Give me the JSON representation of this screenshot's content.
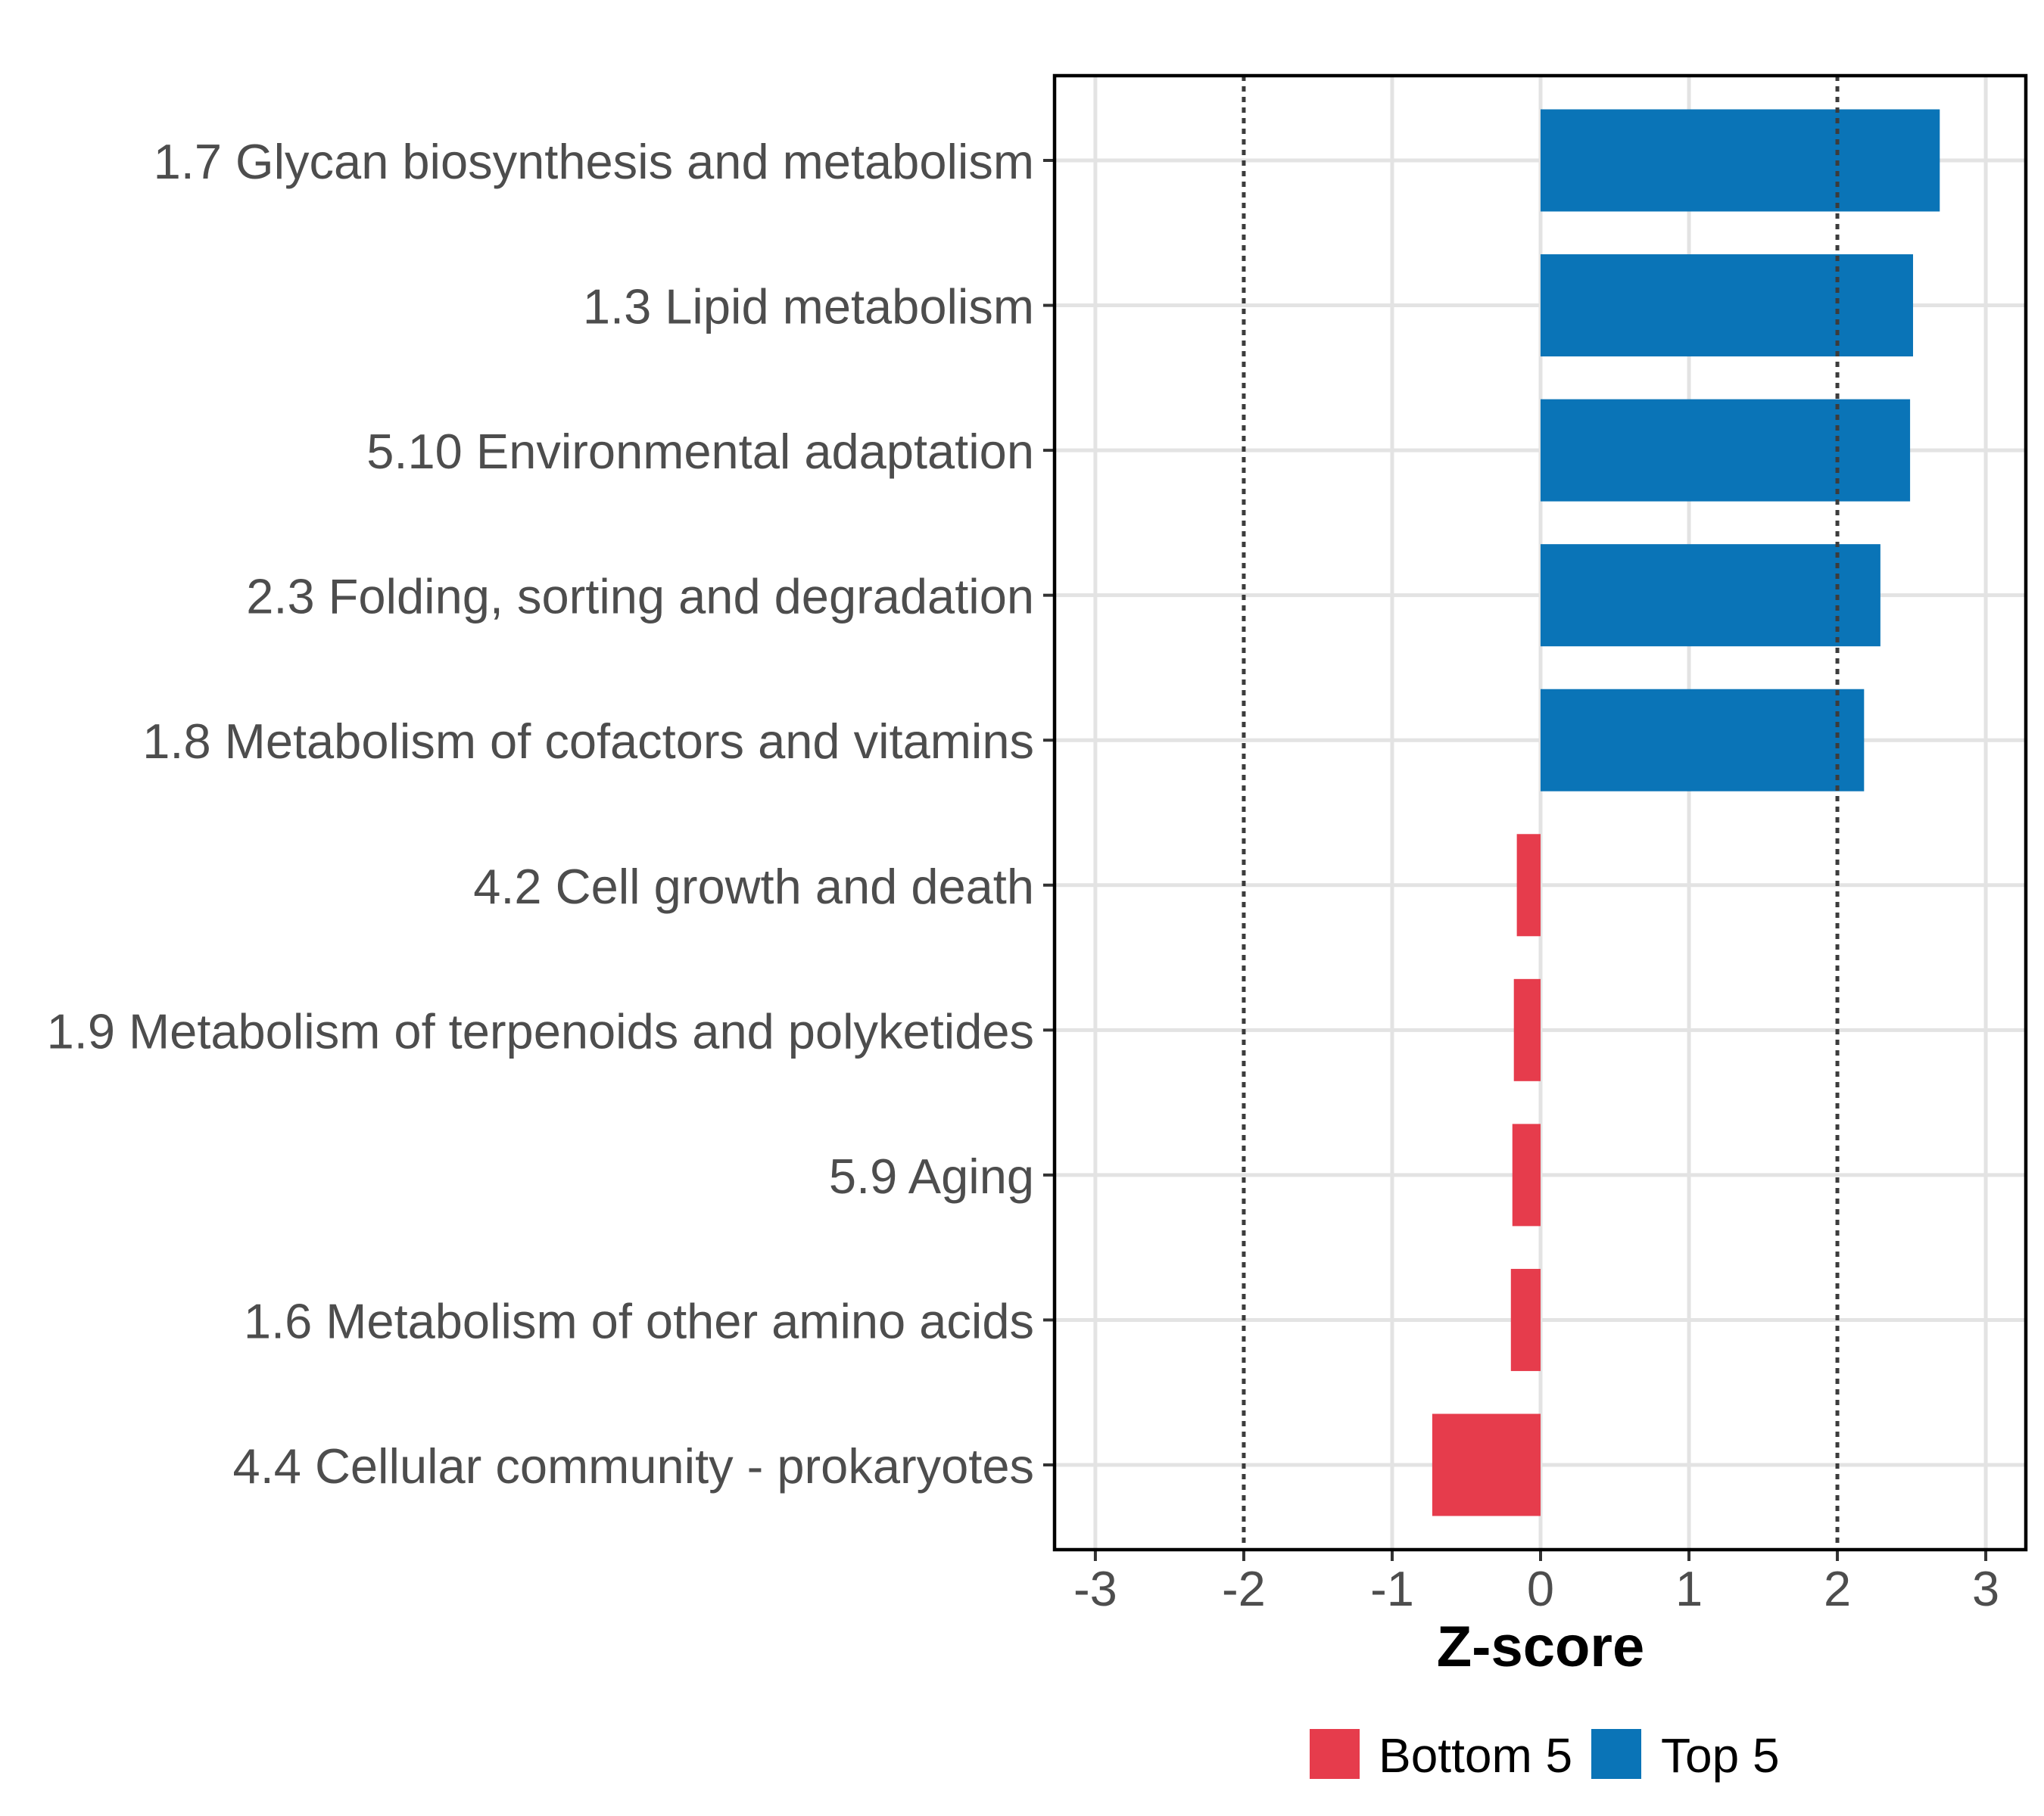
{
  "figure": {
    "background": "#FFFFFF"
  },
  "chart_data": {
    "type": "bar",
    "orientation": "horizontal",
    "title": "",
    "xlabel": "Z-score",
    "ylabel": "",
    "xlim": [
      -3.275,
      3.27
    ],
    "xticks": [
      -3,
      -2,
      -1,
      0,
      1,
      2,
      3
    ],
    "xtick_labels": [
      "-3",
      "-2",
      "-1",
      "0",
      "1",
      "2",
      "3"
    ],
    "grid_on": true,
    "grid_vertical_at": [
      -3,
      -1,
      0,
      1,
      3
    ],
    "reference_lines": [
      {
        "x": -2,
        "style": "dotted"
      },
      {
        "x": 2,
        "style": "dotted"
      }
    ],
    "categories": [
      "1.7 Glycan biosynthesis and metabolism",
      "1.3 Lipid metabolism",
      "5.10 Environmental adaptation",
      "2.3 Folding, sorting and degradation",
      "1.8 Metabolism of cofactors and vitamins",
      "4.2 Cell growth and death",
      "1.9 Metabolism of terpenoids and polyketides",
      "5.9 Aging",
      "1.6 Metabolism of other amino acids",
      "4.4 Cellular community - prokaryotes"
    ],
    "series": [
      {
        "name": "Z-score",
        "values": [
          2.69,
          2.51,
          2.49,
          2.29,
          2.18,
          -0.16,
          -0.18,
          -0.19,
          -0.2,
          -0.73
        ]
      }
    ],
    "groups": [
      "Top 5",
      "Top 5",
      "Top 5",
      "Top 5",
      "Top 5",
      "Bottom 5",
      "Bottom 5",
      "Bottom 5",
      "Bottom 5",
      "Bottom 5"
    ],
    "colors": {
      "Top 5": "#0A74B7",
      "Bottom 5": "#E63C4C"
    },
    "legend": {
      "position": "bottom",
      "entries": [
        {
          "label": "Bottom 5",
          "color": "#E63C4C"
        },
        {
          "label": "Top 5",
          "color": "#0A74B7"
        }
      ]
    },
    "styles": {
      "grid_color": "#E3E3E3",
      "axis_text_color": "#4D4D4D",
      "tick_color": "#333333",
      "ref_line_color": "#3C3C3C",
      "panel_border_color": "#000000"
    }
  }
}
